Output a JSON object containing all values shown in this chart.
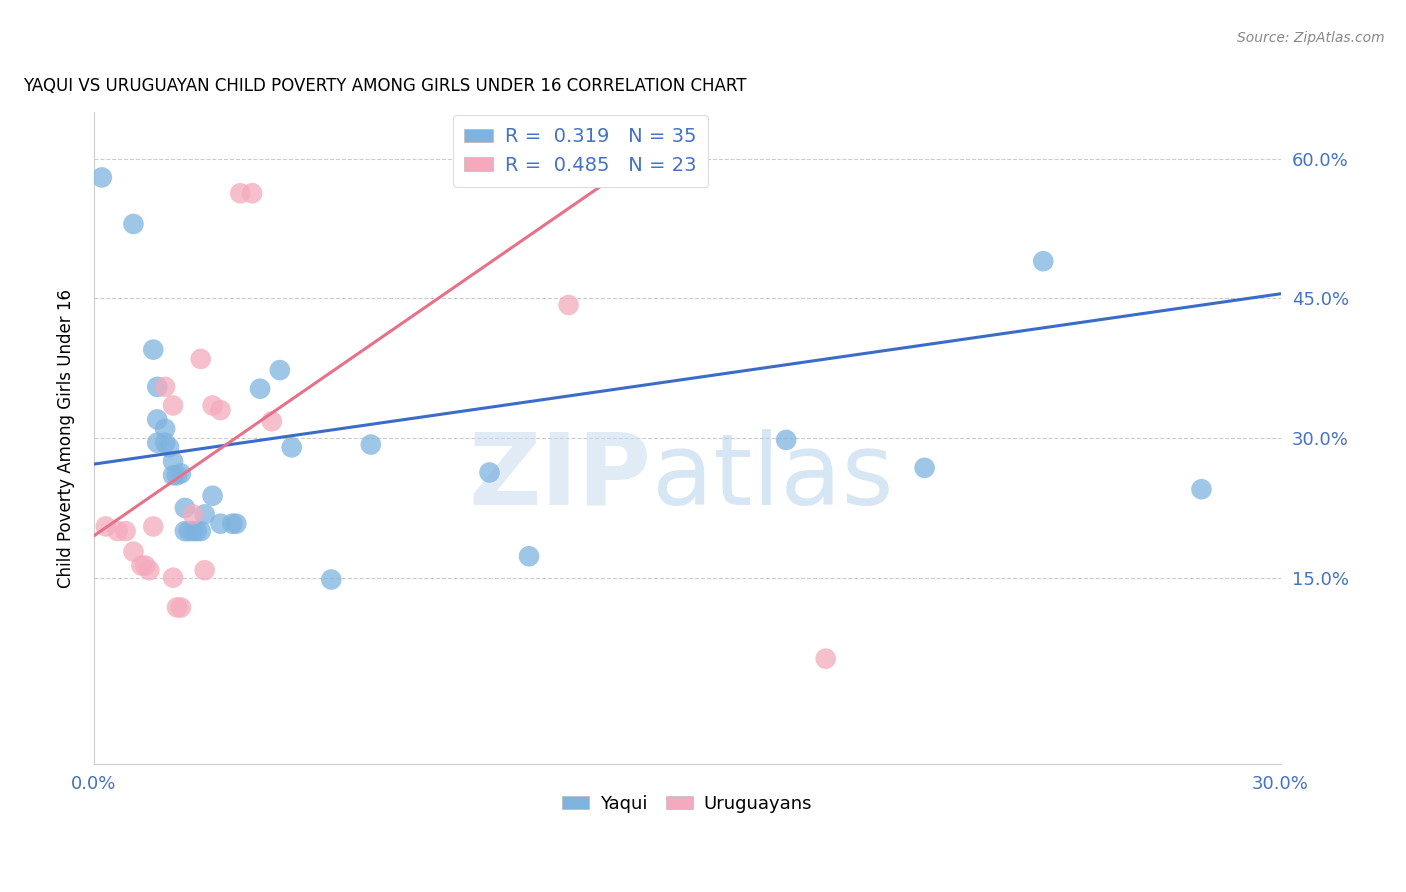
{
  "title": "YAQUI VS URUGUAYAN CHILD POVERTY AMONG GIRLS UNDER 16 CORRELATION CHART",
  "source": "Source: ZipAtlas.com",
  "ylabel_text": "Child Poverty Among Girls Under 16",
  "xlim": [
    0.0,
    0.3
  ],
  "ylim": [
    -0.05,
    0.65
  ],
  "xticks": [
    0.0,
    0.05,
    0.1,
    0.15,
    0.2,
    0.25,
    0.3
  ],
  "xtick_labels": [
    "0.0%",
    "",
    "",
    "",
    "",
    "",
    "30.0%"
  ],
  "ytick_positions": [
    0.15,
    0.3,
    0.45,
    0.6
  ],
  "ytick_labels": [
    "15.0%",
    "30.0%",
    "45.0%",
    "60.0%"
  ],
  "yaqui_color": "#7EB3E0",
  "uruguayan_color": "#F4AABC",
  "yaqui_line_color": "#3B6CC7",
  "uruguayan_line_color": "#E8718A",
  "R_yaqui": 0.319,
  "N_yaqui": 35,
  "R_uruguayan": 0.485,
  "N_uruguayan": 23,
  "watermark_zip": "ZIP",
  "watermark_atlas": "atlas",
  "yaqui_line": [
    [
      0.0,
      0.272
    ],
    [
      0.3,
      0.455
    ]
  ],
  "uruguayan_line": [
    [
      0.0,
      0.195
    ],
    [
      0.145,
      0.62
    ]
  ],
  "yaqui_points": [
    [
      0.002,
      0.58
    ],
    [
      0.01,
      0.53
    ],
    [
      0.015,
      0.395
    ],
    [
      0.016,
      0.355
    ],
    [
      0.016,
      0.32
    ],
    [
      0.016,
      0.295
    ],
    [
      0.018,
      0.31
    ],
    [
      0.018,
      0.295
    ],
    [
      0.019,
      0.29
    ],
    [
      0.02,
      0.275
    ],
    [
      0.02,
      0.26
    ],
    [
      0.021,
      0.26
    ],
    [
      0.022,
      0.262
    ],
    [
      0.023,
      0.2
    ],
    [
      0.023,
      0.225
    ],
    [
      0.024,
      0.2
    ],
    [
      0.025,
      0.2
    ],
    [
      0.026,
      0.2
    ],
    [
      0.027,
      0.2
    ],
    [
      0.028,
      0.218
    ],
    [
      0.03,
      0.238
    ],
    [
      0.032,
      0.208
    ],
    [
      0.035,
      0.208
    ],
    [
      0.036,
      0.208
    ],
    [
      0.042,
      0.353
    ],
    [
      0.047,
      0.373
    ],
    [
      0.05,
      0.29
    ],
    [
      0.06,
      0.148
    ],
    [
      0.07,
      0.293
    ],
    [
      0.1,
      0.263
    ],
    [
      0.11,
      0.173
    ],
    [
      0.175,
      0.298
    ],
    [
      0.21,
      0.268
    ],
    [
      0.24,
      0.49
    ],
    [
      0.28,
      0.245
    ]
  ],
  "uruguayan_points": [
    [
      0.003,
      0.205
    ],
    [
      0.006,
      0.2
    ],
    [
      0.008,
      0.2
    ],
    [
      0.01,
      0.178
    ],
    [
      0.012,
      0.163
    ],
    [
      0.013,
      0.163
    ],
    [
      0.014,
      0.158
    ],
    [
      0.015,
      0.205
    ],
    [
      0.018,
      0.355
    ],
    [
      0.02,
      0.335
    ],
    [
      0.02,
      0.15
    ],
    [
      0.021,
      0.118
    ],
    [
      0.022,
      0.118
    ],
    [
      0.025,
      0.218
    ],
    [
      0.027,
      0.385
    ],
    [
      0.028,
      0.158
    ],
    [
      0.03,
      0.335
    ],
    [
      0.032,
      0.33
    ],
    [
      0.037,
      0.563
    ],
    [
      0.04,
      0.563
    ],
    [
      0.045,
      0.318
    ],
    [
      0.12,
      0.443
    ],
    [
      0.185,
      0.063
    ]
  ]
}
